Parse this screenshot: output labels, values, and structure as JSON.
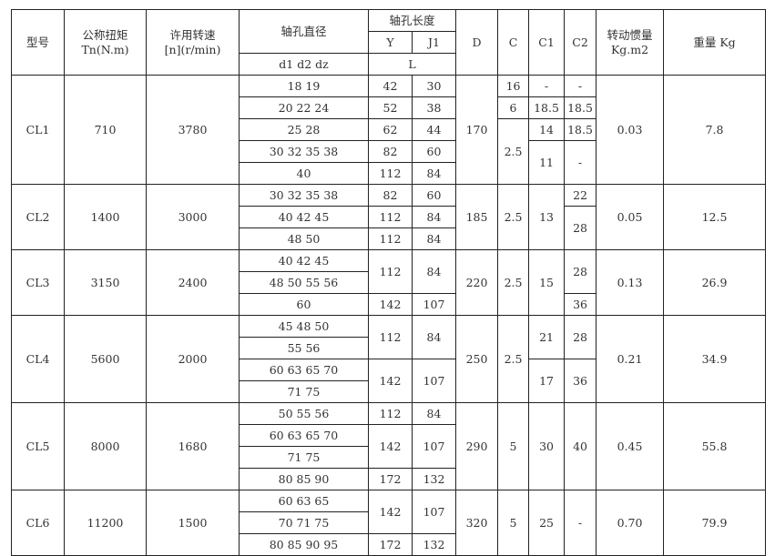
{
  "header": {
    "model": "型号",
    "torque": [
      "公称扭矩",
      "Tn(N.m)"
    ],
    "speed": [
      "许用转速",
      "[n](r/min)"
    ],
    "bore": "轴孔直径",
    "bore_sub": "d1 d2 dz",
    "length": "轴孔长度",
    "Y": "Y",
    "J1": "J1",
    "L": "L",
    "D": "D",
    "C": "C",
    "C1": "C1",
    "C2": "C2",
    "inertia": [
      "转动惯量",
      "Kg.m2"
    ],
    "weight": "重量 Kg"
  },
  "models": [
    {
      "model": "CL1",
      "torque": "710",
      "speed": "3780",
      "bores": [
        "18 19",
        "20 22 24",
        "25 28",
        "30 32 35 38",
        "40"
      ],
      "Y": [
        "42",
        "52",
        "62",
        "82",
        "112"
      ],
      "J1": [
        "30",
        "38",
        "44",
        "60",
        "84"
      ],
      "D": "170",
      "C": [
        "16",
        "6",
        "2.5"
      ],
      "C1": [
        "-",
        "18.5",
        "14",
        "11"
      ],
      "C2": [
        "-",
        "18.5",
        "18.5",
        "-"
      ],
      "inertia": "0.03",
      "weight": "7.8"
    },
    {
      "model": "CL2",
      "torque": "1400",
      "speed": "3000",
      "bores": [
        "30 32 35 38",
        "40 42 45",
        "48 50"
      ],
      "Y": [
        "82",
        "112",
        "112"
      ],
      "J1": [
        "60",
        "84",
        "84"
      ],
      "D": "185",
      "C": [
        "2.5"
      ],
      "C1": [
        "13"
      ],
      "C2": [
        "22",
        "28"
      ],
      "inertia": "0.05",
      "weight": "12.5"
    },
    {
      "model": "CL3",
      "torque": "3150",
      "speed": "2400",
      "bores": [
        "40 42 45",
        "48 50 55 56",
        "60"
      ],
      "Y": [
        "112",
        "142"
      ],
      "J1": [
        "84",
        "107"
      ],
      "D": "220",
      "C": [
        "2.5"
      ],
      "C1": [
        "15"
      ],
      "C2": [
        "28",
        "36"
      ],
      "inertia": "0.13",
      "weight": "26.9"
    },
    {
      "model": "CL4",
      "torque": "5600",
      "speed": "2000",
      "bores": [
        "45 48 50",
        "55 56",
        "60 63 65 70",
        "71 75"
      ],
      "Y": [
        "112",
        "142"
      ],
      "J1": [
        "84",
        "107"
      ],
      "D": "250",
      "C": [
        "2.5"
      ],
      "C1": [
        "21",
        "17"
      ],
      "C2": [
        "28",
        "36"
      ],
      "inertia": "0.21",
      "weight": "34.9"
    },
    {
      "model": "CL5",
      "torque": "8000",
      "speed": "1680",
      "bores": [
        "50 55 56",
        "60 63 65 70",
        "71 75",
        "80 85 90"
      ],
      "Y": [
        "112",
        "142",
        "172"
      ],
      "J1": [
        "84",
        "107",
        "132"
      ],
      "D": "290",
      "C": [
        "5"
      ],
      "C1": [
        "30"
      ],
      "C2": [
        "40"
      ],
      "inertia": "0.45",
      "weight": "55.8"
    },
    {
      "model": "CL6",
      "torque": "11200",
      "speed": "1500",
      "bores": [
        "60 63 65",
        "70 71 75",
        "80 85 90 95"
      ],
      "Y": [
        "142",
        "172"
      ],
      "J1": [
        "107",
        "132"
      ],
      "D": "320",
      "C": [
        "5"
      ],
      "C1": [
        "25"
      ],
      "C2": [
        "-"
      ],
      "inertia": "0.70",
      "weight": "79.9"
    }
  ]
}
